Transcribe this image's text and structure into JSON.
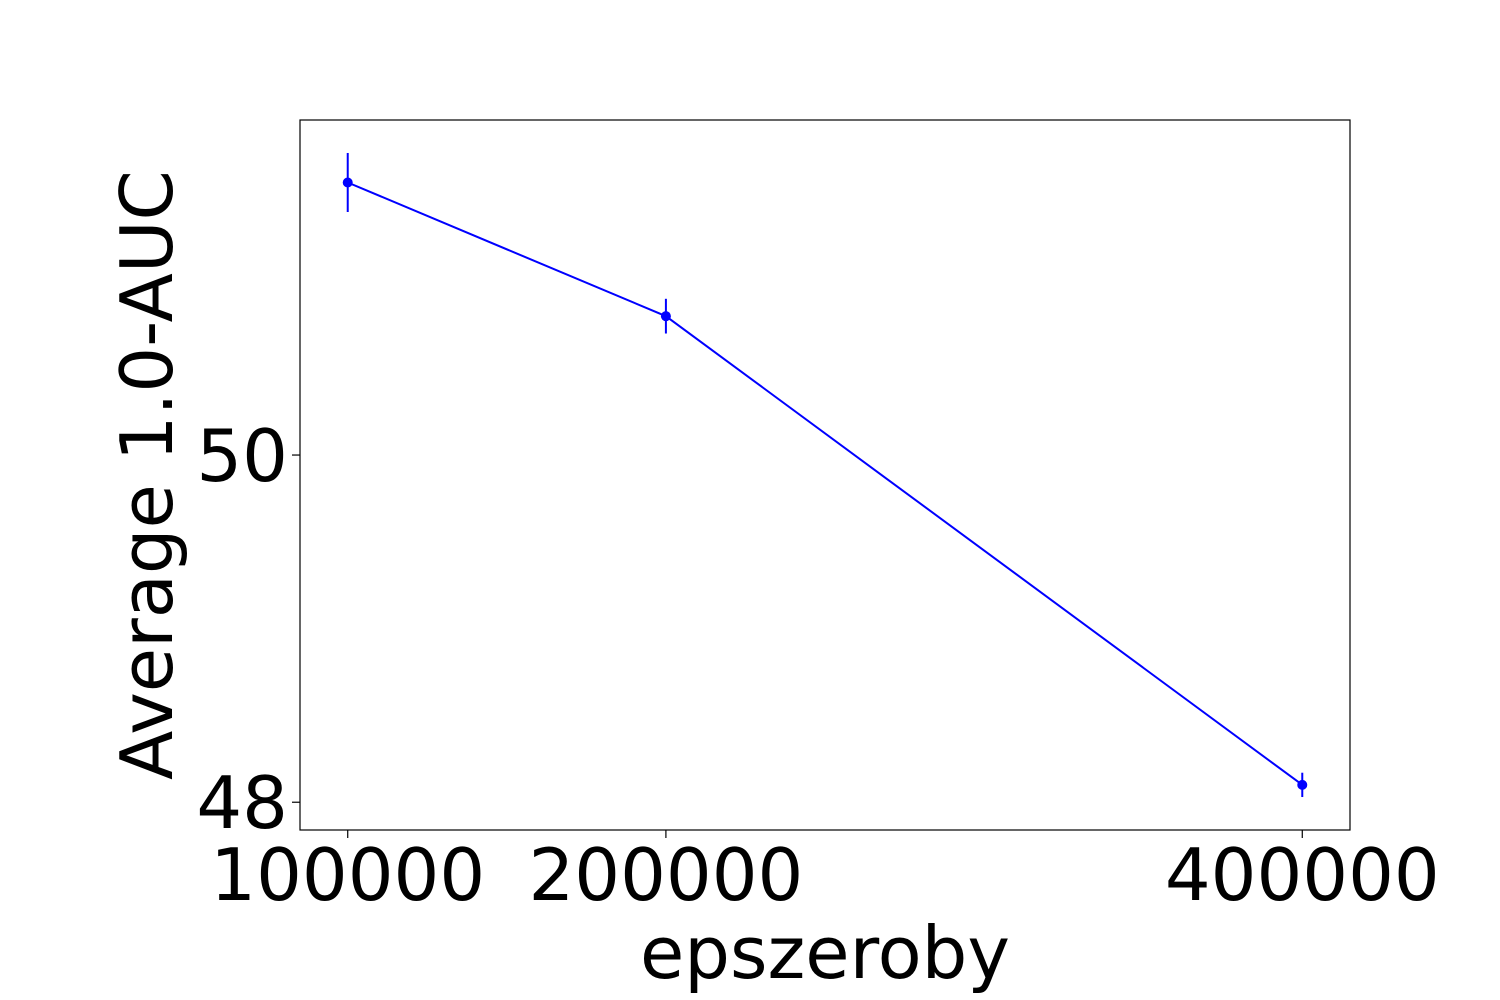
{
  "chart_data": {
    "type": "line",
    "x_label": "epszeroby",
    "y_label": "Average 1.0-AUC",
    "x": [
      100000,
      200000,
      400000
    ],
    "series": [
      {
        "color": "#0000ff",
        "values": [
          51.57,
          50.8,
          48.1
        ],
        "errors": [
          0.17,
          0.1,
          0.07
        ]
      }
    ],
    "xlim": [
      85000,
      415000
    ],
    "xticks": [
      100000,
      200000,
      400000
    ],
    "ylim": [
      47.84,
      51.93
    ],
    "yticks": [
      48,
      50
    ],
    "grid": false
  }
}
